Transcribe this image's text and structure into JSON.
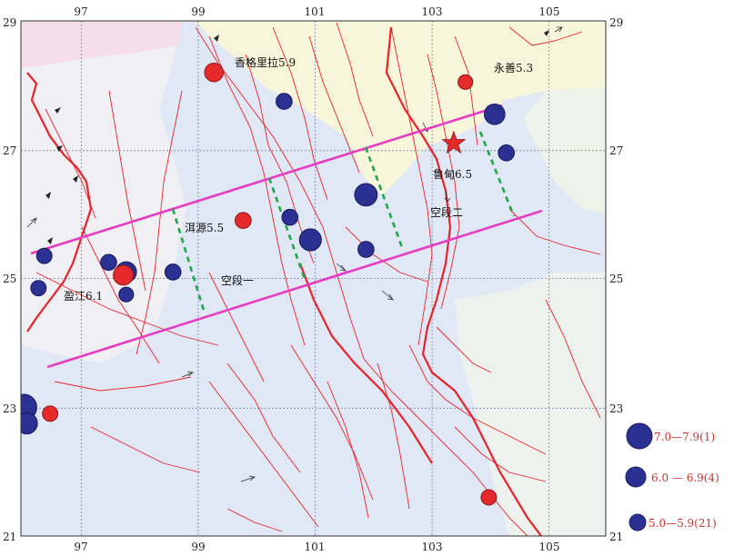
{
  "map": {
    "lon_range": [
      96,
      106
    ],
    "lat_range": [
      21,
      29
    ],
    "lon_ticks": [
      97,
      99,
      101,
      103,
      105
    ],
    "lat_ticks": [
      21,
      23,
      25,
      27,
      29
    ],
    "colors": {
      "background": "#dfe8f4",
      "west_region": "#efeff4",
      "northwest_region": "#f6ddea",
      "northeast_region": "#f7f6da",
      "far_northeast": "#eef3ea",
      "fault": "#e8232b",
      "thick_fault": "#e8232b",
      "belt": "#e83bc3",
      "segment_line": "#22a64a",
      "large_quake": "#2a3193",
      "historic_quake": "#e6292b",
      "star": "#e6292b",
      "grid": "#7d7fa8"
    }
  },
  "labels": {
    "shangri_la": "香格里拉5.9",
    "yongshan": "永善5.3",
    "ludian": "鲁甸6.5",
    "eryuan": "洱源5.5",
    "gap1": "空段一",
    "gap2": "空段二",
    "yingjiang": "盈江6.1"
  },
  "legend": [
    {
      "label": "7.0—7.9(1)",
      "magnitude_class": "7.0-7.9"
    },
    {
      "label": "6.0 — 6.9(4)",
      "magnitude_class": "6.0-6.9"
    },
    {
      "label": "5.0—5.9(21)",
      "magnitude_class": "5.0-5.9"
    }
  ],
  "earthquakes": [
    {
      "lon": 99.3,
      "lat": 28.2,
      "mag": 5.9,
      "type": "red"
    },
    {
      "lon": 103.6,
      "lat": 28.05,
      "mag": 5.3,
      "type": "red"
    },
    {
      "lon": 100.5,
      "lat": 27.75,
      "mag": 5.5,
      "type": "blue"
    },
    {
      "lon": 104.1,
      "lat": 27.55,
      "mag": 6.2,
      "type": "blue"
    },
    {
      "lon": 104.3,
      "lat": 26.95,
      "mag": 5.5,
      "type": "blue"
    },
    {
      "lon": 101.9,
      "lat": 26.3,
      "mag": 6.5,
      "type": "blue"
    },
    {
      "lon": 100.6,
      "lat": 25.95,
      "mag": 5.5,
      "type": "blue"
    },
    {
      "lon": 99.8,
      "lat": 25.9,
      "mag": 5.5,
      "type": "red"
    },
    {
      "lon": 100.95,
      "lat": 25.6,
      "mag": 6.4,
      "type": "blue"
    },
    {
      "lon": 101.9,
      "lat": 25.45,
      "mag": 5.5,
      "type": "blue"
    },
    {
      "lon": 96.4,
      "lat": 25.35,
      "mag": 5.4,
      "type": "blue"
    },
    {
      "lon": 97.5,
      "lat": 25.25,
      "mag": 5.5,
      "type": "blue"
    },
    {
      "lon": 97.8,
      "lat": 25.1,
      "mag": 6.2,
      "type": "blue"
    },
    {
      "lon": 97.75,
      "lat": 25.05,
      "mag": 6.1,
      "type": "red"
    },
    {
      "lon": 97.8,
      "lat": 24.75,
      "mag": 5.3,
      "type": "blue"
    },
    {
      "lon": 96.3,
      "lat": 24.85,
      "mag": 5.4,
      "type": "blue"
    },
    {
      "lon": 98.6,
      "lat": 25.1,
      "mag": 5.5,
      "type": "blue"
    },
    {
      "lon": 96.05,
      "lat": 23.0,
      "mag": 7.0,
      "type": "blue"
    },
    {
      "lon": 96.1,
      "lat": 22.75,
      "mag": 6.3,
      "type": "blue"
    },
    {
      "lon": 96.5,
      "lat": 22.9,
      "mag": 5.4,
      "type": "red"
    },
    {
      "lon": 104.0,
      "lat": 21.6,
      "mag": 5.4,
      "type": "red"
    }
  ],
  "epicenter_star": {
    "lon": 103.4,
    "lat": 27.1,
    "label_ref": "ludian"
  }
}
